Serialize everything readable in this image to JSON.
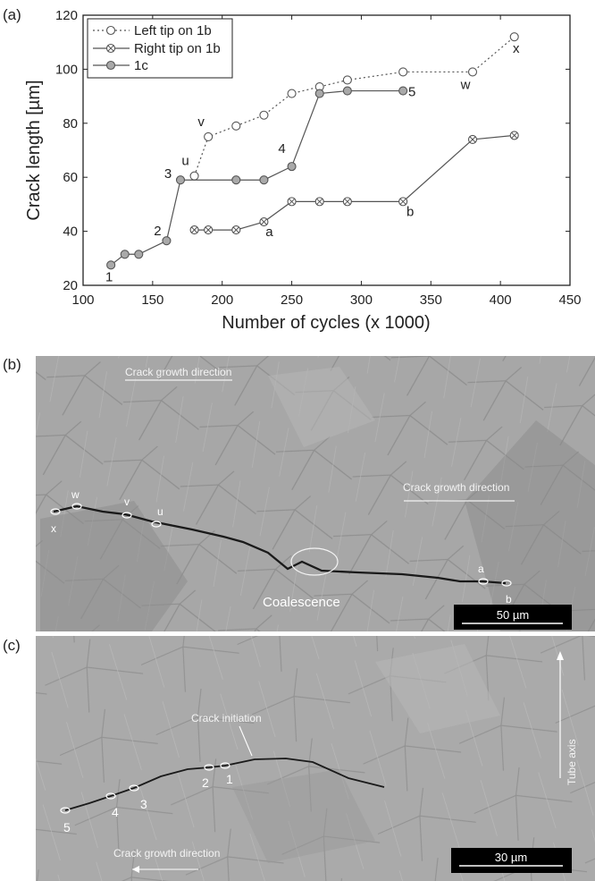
{
  "panel_a": {
    "letter": "(a)",
    "chart_data": {
      "type": "line",
      "xlabel": "Number of cycles (x 1000)",
      "ylabel": "Crack length [µm]",
      "xlim": [
        100,
        450
      ],
      "ylim": [
        20,
        120
      ],
      "xticks": [
        "100",
        "150",
        "200",
        "250",
        "300",
        "350",
        "400",
        "450"
      ],
      "yticks": [
        "20",
        "40",
        "60",
        "80",
        "100",
        "120"
      ],
      "grid": false,
      "legend_position": "top-left",
      "series": [
        {
          "name": "Left tip on 1b",
          "style": "dotted-open-circle",
          "x": [
            180,
            190,
            210,
            230,
            250,
            270,
            290,
            330,
            380,
            410
          ],
          "y": [
            60.5,
            75,
            79,
            83,
            91,
            93.5,
            96,
            99,
            99,
            112
          ]
        },
        {
          "name": "Right tip on 1b",
          "style": "solid-crossed-circle",
          "x": [
            180,
            190,
            210,
            230,
            250,
            270,
            290,
            330,
            380,
            410
          ],
          "y": [
            40.5,
            40.5,
            40.5,
            43.5,
            51,
            51,
            51,
            51,
            74,
            75.5
          ]
        },
        {
          "name": "1c",
          "style": "solid-filled-circle",
          "x": [
            120,
            130,
            140,
            160,
            170,
            210,
            230,
            250,
            270,
            290,
            330
          ],
          "y": [
            27.5,
            31.5,
            31.5,
            36.5,
            59,
            59,
            59,
            64,
            91,
            92,
            92
          ]
        }
      ],
      "annotations": [
        {
          "text": "1",
          "x": 120,
          "y": 27.5
        },
        {
          "text": "2",
          "x": 160,
          "y": 36.5
        },
        {
          "text": "3",
          "x": 170,
          "y": 59
        },
        {
          "text": "4",
          "x": 250,
          "y": 64
        },
        {
          "text": "5",
          "x": 330,
          "y": 92
        },
        {
          "text": "u",
          "x": 180,
          "y": 60.5
        },
        {
          "text": "v",
          "x": 190,
          "y": 75
        },
        {
          "text": "w",
          "x": 380,
          "y": 99
        },
        {
          "text": "x",
          "x": 410,
          "y": 112
        },
        {
          "text": "a",
          "x": 230,
          "y": 43.5
        },
        {
          "text": "b",
          "x": 330,
          "y": 51
        }
      ]
    }
  },
  "panel_b": {
    "letter": "(b)",
    "growth_label_left": "Crack growth direction",
    "growth_label_right": "Crack growth direction",
    "coalescence_label": "Coalescence",
    "scale_bar": "50 µm",
    "markers": [
      "w",
      "x",
      "v",
      "u",
      "a",
      "b"
    ]
  },
  "panel_c": {
    "letter": "(c)",
    "initiation_label": "Crack initiation",
    "growth_label": "Crack growth direction",
    "tube_axis_label": "Tube axis",
    "scale_bar": "30 µm",
    "markers": [
      "1",
      "2",
      "3",
      "4",
      "5"
    ]
  },
  "colors": {
    "line": "#555555",
    "marker_fill_1c": "#a9a9a9",
    "micro_bg": "#a6a6a6",
    "scale_bar_bg": "#000000"
  }
}
